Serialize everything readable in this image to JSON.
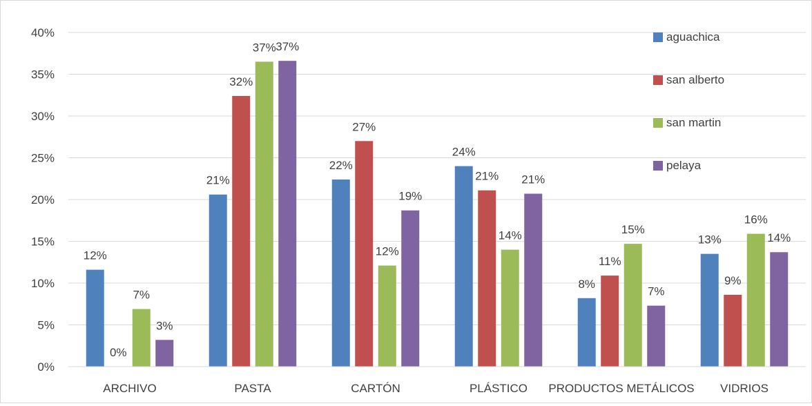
{
  "chart_data": {
    "type": "bar",
    "title": "",
    "xlabel": "",
    "ylabel": "",
    "categories": [
      "ARCHIVO",
      "PASTA",
      "CARTÓN",
      "PLÁSTICO",
      "PRODUCTOS METÁLICOS",
      "VIDRIOS"
    ],
    "series": [
      {
        "name": "aguachica",
        "color": "#4F81BD",
        "values": [
          11.6,
          20.6,
          22.4,
          24.0,
          8.2,
          13.5
        ],
        "labels": [
          "12%",
          "21%",
          "22%",
          "24%",
          "8%",
          "13%"
        ]
      },
      {
        "name": "san alberto",
        "color": "#C0504D",
        "values": [
          0.0,
          32.4,
          27.0,
          21.1,
          10.9,
          8.6
        ],
        "labels": [
          "0%",
          "32%",
          "27%",
          "21%",
          "11%",
          "9%"
        ]
      },
      {
        "name": "san martin",
        "color": "#9BBB59",
        "values": [
          6.9,
          36.5,
          12.1,
          14.0,
          14.7,
          15.9
        ],
        "labels": [
          "7%",
          "37%",
          "12%",
          "14%",
          "15%",
          "16%"
        ]
      },
      {
        "name": "pelaya",
        "color": "#8064A2",
        "values": [
          3.2,
          36.6,
          18.7,
          20.7,
          7.3,
          13.7
        ],
        "labels": [
          "3%",
          "37%",
          "19%",
          "21%",
          "7%",
          "14%"
        ]
      }
    ],
    "ylim": [
      0,
      40
    ],
    "yticks": [
      "0%",
      "5%",
      "10%",
      "15%",
      "20%",
      "25%",
      "30%",
      "35%",
      "40%"
    ],
    "grid": true,
    "legend_position": "top-right"
  }
}
